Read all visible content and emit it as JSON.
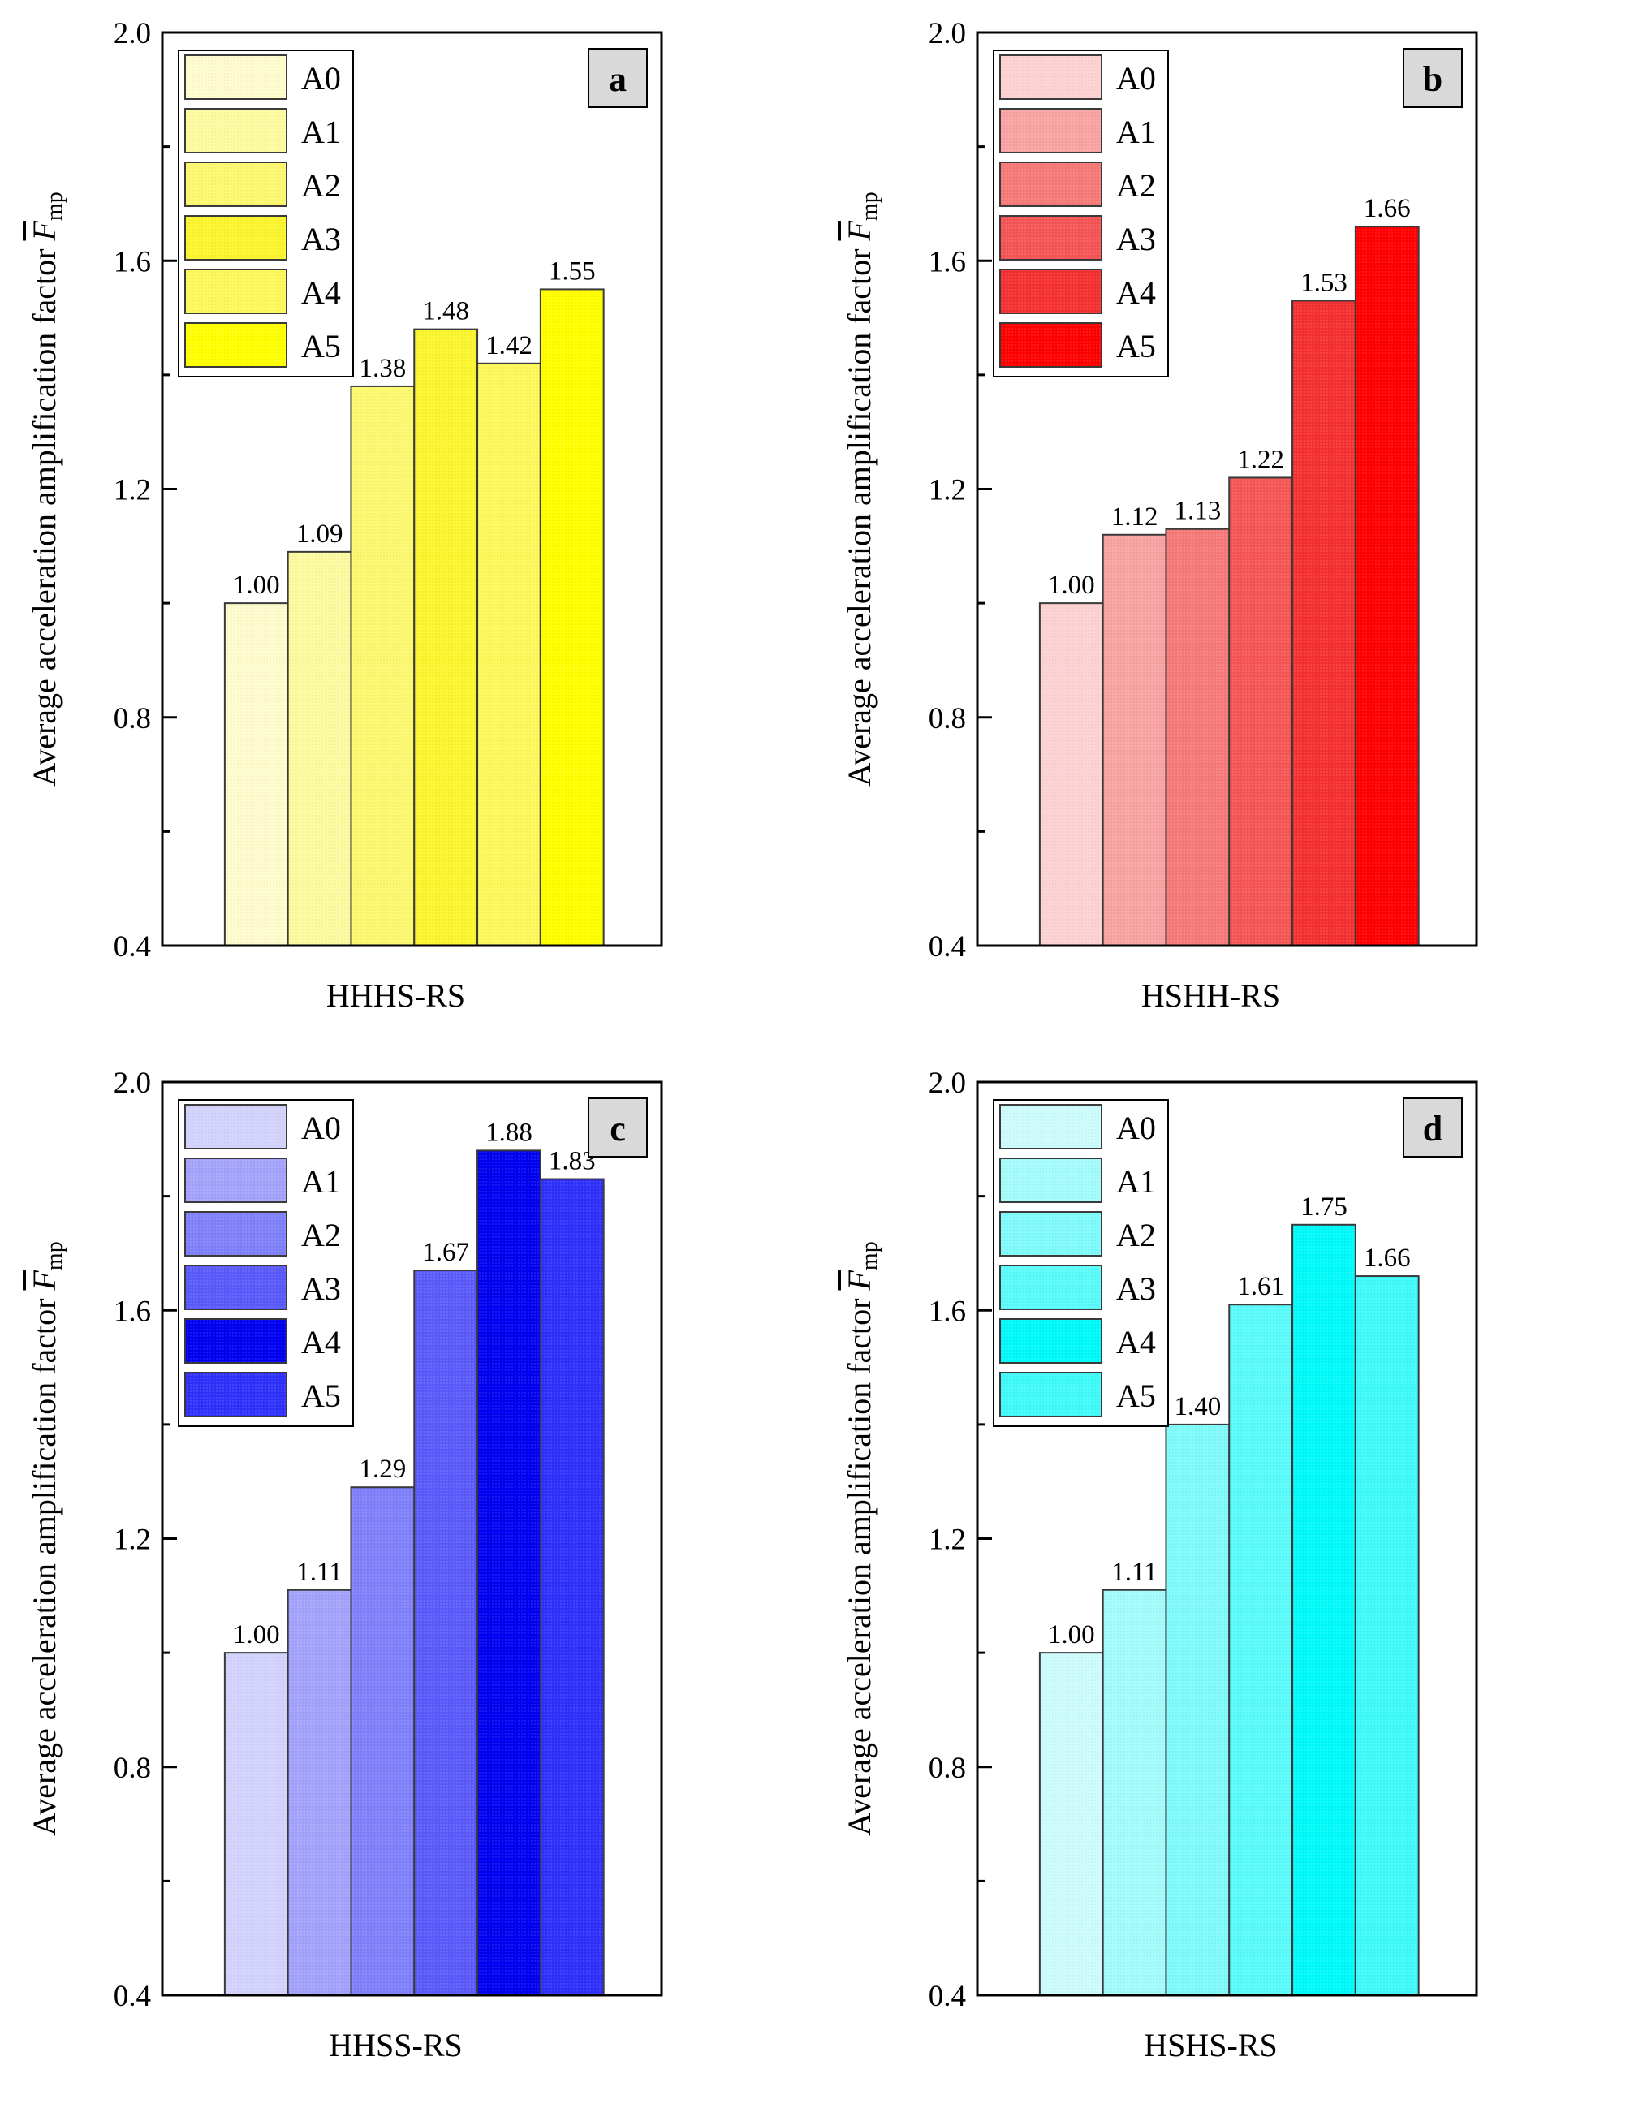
{
  "chart_data": [
    {
      "type": "bar",
      "panel_letter": "a",
      "title": "",
      "xlabel": "HHHS-RS",
      "ylabel": "Average acceleration amplification factor",
      "ylabel_symbol": "F",
      "ylabel_subscript": "mp",
      "ylim": [
        0.4,
        2.0
      ],
      "yticks": [
        "0.4",
        "0.8",
        "1.2",
        "1.6",
        "2.0"
      ],
      "legend_position": "top-left",
      "categories": [
        "A0",
        "A1",
        "A2",
        "A3",
        "A4",
        "A5"
      ],
      "values": [
        1.0,
        1.09,
        1.38,
        1.48,
        1.42,
        1.55
      ],
      "value_labels": [
        "1.00",
        "1.09",
        "1.38",
        "1.48",
        "1.42",
        "1.55"
      ],
      "colors": [
        "#fefccc",
        "#fdfba0",
        "#fcf870",
        "#fbf52e",
        "#fcf85a",
        "#ffff00"
      ]
    },
    {
      "type": "bar",
      "panel_letter": "b",
      "title": "",
      "xlabel": "HSHH-RS",
      "ylabel": "Average acceleration amplification factor",
      "ylabel_symbol": "F",
      "ylabel_subscript": "mp",
      "ylim": [
        0.4,
        2.0
      ],
      "yticks": [
        "0.4",
        "0.8",
        "1.2",
        "1.6",
        "2.0"
      ],
      "legend_position": "top-left",
      "categories": [
        "A0",
        "A1",
        "A2",
        "A3",
        "A4",
        "A5"
      ],
      "values": [
        1.0,
        1.12,
        1.13,
        1.22,
        1.53,
        1.66
      ],
      "value_labels": [
        "1.00",
        "1.12",
        "1.13",
        "1.22",
        "1.53",
        "1.66"
      ],
      "colors": [
        "#fcd2d2",
        "#f9a3a3",
        "#f77a7a",
        "#f55555",
        "#f43030",
        "#ff0000"
      ]
    },
    {
      "type": "bar",
      "panel_letter": "c",
      "title": "",
      "xlabel": "HHSS-RS",
      "ylabel": "Average acceleration amplification factor",
      "ylabel_symbol": "F",
      "ylabel_subscript": "mp",
      "ylim": [
        0.4,
        2.0
      ],
      "yticks": [
        "0.4",
        "0.8",
        "1.2",
        "1.6",
        "2.0"
      ],
      "legend_position": "top-left",
      "categories": [
        "A0",
        "A1",
        "A2",
        "A3",
        "A4",
        "A5"
      ],
      "values": [
        1.0,
        1.11,
        1.29,
        1.67,
        1.88,
        1.83
      ],
      "value_labels": [
        "1.00",
        "1.11",
        "1.29",
        "1.67",
        "1.88",
        "1.83"
      ],
      "colors": [
        "#d2d2fc",
        "#a3a3fb",
        "#8080fa",
        "#5a5afb",
        "#0000f0",
        "#3030fb"
      ]
    },
    {
      "type": "bar",
      "panel_letter": "d",
      "title": "",
      "xlabel": "HSHS-RS",
      "ylabel": "Average acceleration amplification factor",
      "ylabel_symbol": "F",
      "ylabel_subscript": "mp",
      "ylim": [
        0.4,
        2.0
      ],
      "yticks": [
        "0.4",
        "0.8",
        "1.2",
        "1.6",
        "2.0"
      ],
      "legend_position": "top-left",
      "categories": [
        "A0",
        "A1",
        "A2",
        "A3",
        "A4",
        "A5"
      ],
      "values": [
        1.0,
        1.11,
        1.4,
        1.61,
        1.75,
        1.66
      ],
      "value_labels": [
        "1.00",
        "1.11",
        "1.40",
        "1.61",
        "1.75",
        "1.66"
      ],
      "colors": [
        "#ccfcfc",
        "#a3fbfb",
        "#80fafa",
        "#5afbfb",
        "#00fafa",
        "#40fafa"
      ]
    }
  ]
}
